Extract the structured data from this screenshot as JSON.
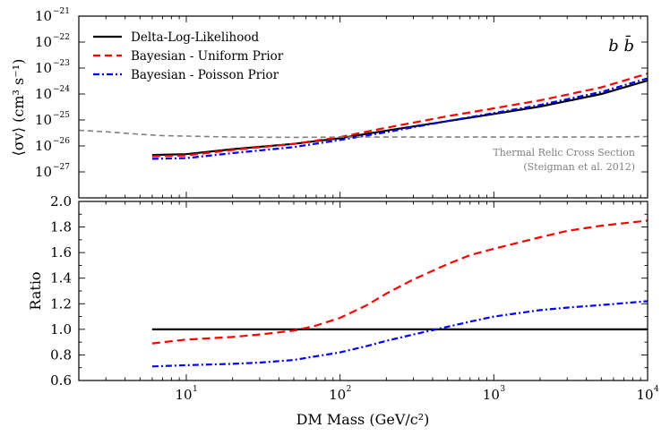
{
  "chart_data": [
    {
      "type": "line",
      "panel": "top",
      "xscale": "log",
      "yscale": "log",
      "xlim": [
        2,
        10000
      ],
      "ylim": [
        1e-28,
        1e-21
      ],
      "ylabel": "⟨σv⟩ (cm³ s⁻¹)",
      "y_tick_labels": [
        {
          "base": "10",
          "exp": "−21"
        },
        {
          "base": "10",
          "exp": "−22"
        },
        {
          "base": "10",
          "exp": "−23"
        },
        {
          "base": "10",
          "exp": "−24"
        },
        {
          "base": "10",
          "exp": "−25"
        },
        {
          "base": "10",
          "exp": "−26"
        },
        {
          "base": "10",
          "exp": "−27"
        }
      ],
      "channel_label": "b b̄",
      "legend": {
        "placement": "top-left",
        "entries": [
          "Delta-Log-Likelihood",
          "Bayesian - Uniform Prior",
          "Bayesian - Poisson Prior"
        ]
      },
      "annotation": {
        "line1": "Thermal Relic Cross Section",
        "line2": "(Steigman et al. 2012)"
      },
      "series": [
        {
          "name": "Delta-Log-Likelihood",
          "color": "#000000",
          "style": "solid",
          "x": [
            6,
            10,
            20,
            50,
            100,
            200,
            500,
            1000,
            2000,
            5000,
            10000
          ],
          "y": [
            4.5e-27,
            4.8e-27,
            7.5e-27,
            1.2e-26,
            2e-26,
            3.9e-26,
            9e-26,
            1.7e-25,
            3.3e-25,
            1e-24,
            3.3e-24
          ]
        },
        {
          "name": "Bayesian - Uniform Prior",
          "color": "#ff0000",
          "style": "dashed",
          "x": [
            6,
            10,
            20,
            50,
            100,
            200,
            500,
            1000,
            2000,
            5000,
            10000
          ],
          "y": [
            4e-27,
            4.3e-27,
            7e-27,
            1.2e-26,
            2.2e-26,
            5e-26,
            1.4e-25,
            2.8e-25,
            5.7e-25,
            1.8e-24,
            6.1e-24
          ]
        },
        {
          "name": "Bayesian - Poisson Prior",
          "color": "#0000ff",
          "style": "dashdot",
          "x": [
            6,
            10,
            20,
            50,
            100,
            200,
            500,
            1000,
            2000,
            5000,
            10000
          ],
          "y": [
            3.2e-27,
            3.4e-27,
            5.3e-27,
            9e-27,
            1.7e-26,
            3.4e-26,
            9.1e-26,
            1.85e-25,
            3.8e-25,
            1.2e-24,
            4e-24
          ]
        },
        {
          "name": "Thermal Relic Cross Section",
          "color": "#808080",
          "style": "dashed",
          "x": [
            2,
            3,
            5,
            7,
            10,
            20,
            50,
            100,
            200,
            500,
            1000,
            2000,
            5000,
            10000
          ],
          "y": [
            4e-26,
            3.5e-26,
            2.8e-26,
            2.5e-26,
            2.4e-26,
            2.2e-26,
            2.15e-26,
            2.2e-26,
            2.2e-26,
            2.2e-26,
            2.2e-26,
            2.2e-26,
            2.2e-26,
            2.3e-26
          ]
        }
      ]
    },
    {
      "type": "line",
      "panel": "bottom",
      "xscale": "log",
      "xlim": [
        2,
        10000
      ],
      "ylim": [
        0.6,
        2.0
      ],
      "xlabel": "DM Mass (GeV/c²)",
      "ylabel": "Ratio",
      "y_ticks": [
        "0.6",
        "0.8",
        "1.0",
        "1.2",
        "1.4",
        "1.6",
        "1.8",
        "2.0"
      ],
      "x_tick_labels": [
        {
          "base": "10",
          "exp": "1"
        },
        {
          "base": "10",
          "exp": "2"
        },
        {
          "base": "10",
          "exp": "3"
        },
        {
          "base": "10",
          "exp": "4"
        }
      ],
      "series": [
        {
          "name": "Delta-Log-Likelihood",
          "color": "#000000",
          "style": "solid",
          "x": [
            6,
            10000
          ],
          "y": [
            1.0,
            1.0
          ]
        },
        {
          "name": "Bayesian - Uniform Prior",
          "color": "#ff0000",
          "style": "dashed",
          "x": [
            6,
            10,
            20,
            30,
            50,
            70,
            100,
            150,
            200,
            300,
            500,
            700,
            1000,
            2000,
            3000,
            5000,
            10000
          ],
          "y": [
            0.89,
            0.92,
            0.94,
            0.96,
            0.99,
            1.03,
            1.09,
            1.19,
            1.28,
            1.39,
            1.51,
            1.58,
            1.63,
            1.72,
            1.77,
            1.81,
            1.85
          ]
        },
        {
          "name": "Bayesian - Poisson Prior",
          "color": "#0000ff",
          "style": "dashdot",
          "x": [
            6,
            10,
            20,
            30,
            50,
            70,
            100,
            150,
            200,
            300,
            500,
            700,
            1000,
            2000,
            3000,
            5000,
            10000
          ],
          "y": [
            0.71,
            0.72,
            0.73,
            0.74,
            0.76,
            0.79,
            0.82,
            0.87,
            0.91,
            0.96,
            1.02,
            1.06,
            1.1,
            1.15,
            1.17,
            1.19,
            1.22
          ]
        }
      ]
    }
  ]
}
